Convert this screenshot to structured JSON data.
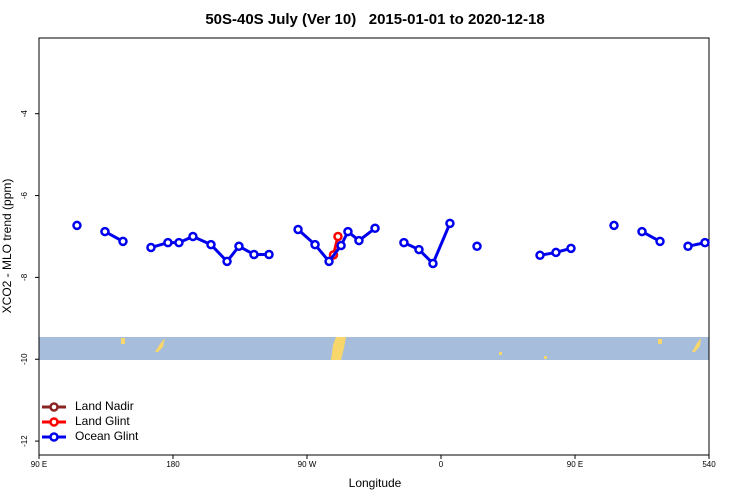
{
  "chart_data": {
    "type": "line",
    "title": "50S-40S July (Ver 10)   2015-01-01 to 2020-12-18",
    "x_label": "Longitude",
    "y_label": "XCO2 - MLO trend (ppm)",
    "xlim": [
      90,
      540
    ],
    "xticks": [
      {
        "value": 90,
        "label": "90 E"
      },
      180,
      {
        "value": 270,
        "label": "90 W"
      },
      {
        "value": 360,
        "label": "0"
      },
      {
        "value": 450,
        "label": "90 E"
      },
      540
    ],
    "ylim": [
      -12.34,
      -2.15
    ],
    "yticks": [
      -4,
      -6,
      -8,
      -10,
      -12
    ],
    "legend": "bottom-left",
    "series": [
      {
        "name": "Land Nadir",
        "color": "#8b2323",
        "x": [],
        "values": []
      },
      {
        "name": "Land Glint",
        "color": "#ff0000",
        "x": [
          287.8,
          290.8
        ],
        "values": [
          -7.45,
          -7.0
        ]
      },
      {
        "name": "Ocean Glint",
        "color": "#0000ee",
        "x": [
          115.5,
          null,
          134.3,
          146.4,
          null,
          165.2,
          176.6,
          184,
          193.4,
          205.5,
          216.3,
          224.3,
          234.4,
          244.5,
          null,
          264,
          275.4,
          284.8,
          292.9,
          297.5,
          304.9,
          315.7,
          null,
          335.1,
          345.2,
          354.6,
          366,
          null,
          384.2,
          null,
          426.5,
          437.2,
          447.3,
          null,
          476.2,
          null,
          495,
          507.1,
          null,
          525.9,
          537.3
        ],
        "values": [
          -6.73,
          null,
          -6.88,
          -7.12,
          null,
          -7.27,
          -7.15,
          -7.15,
          -7.0,
          -7.2,
          -7.61,
          -7.24,
          -7.44,
          -7.44,
          null,
          -6.83,
          -7.2,
          -7.61,
          -7.22,
          -6.88,
          -7.1,
          -6.8,
          null,
          -7.15,
          -7.32,
          -7.66,
          -6.68,
          null,
          -7.24,
          null,
          -7.46,
          -7.39,
          -7.29,
          null,
          -6.73,
          null,
          -6.88,
          -7.12,
          null,
          -7.24,
          -7.15
        ]
      }
    ]
  }
}
